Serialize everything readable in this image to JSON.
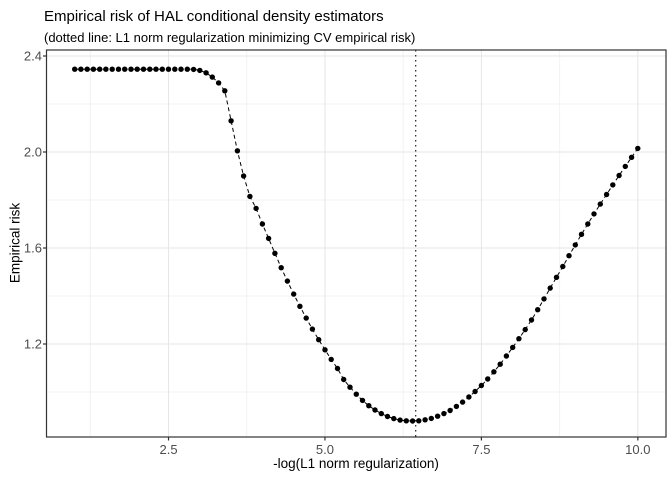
{
  "chart_data": {
    "type": "scatter",
    "title": "Empirical risk of HAL conditional density estimators",
    "subtitle": "(dotted line: L1 norm regularization minimizing CV empirical risk)",
    "xlabel": "-log(L1 norm regularization)",
    "ylabel": "Empirical risk",
    "xlim": [
      0.55,
      10.45
    ],
    "ylim": [
      0.8125,
      2.425
    ],
    "x_major_ticks": [
      2.5,
      5.0,
      7.5,
      10.0
    ],
    "x_tick_labels": [
      "2.5",
      "5.0",
      "7.5",
      "10.0"
    ],
    "x_minor_ticks": [
      1.25,
      3.75,
      6.25,
      8.75
    ],
    "y_major_ticks": [
      1.2,
      1.6,
      2.0,
      2.4
    ],
    "y_tick_labels": [
      "1.2",
      "1.6",
      "2.0",
      "2.4"
    ],
    "y_minor_ticks": [
      1.0,
      1.4,
      1.8,
      2.2
    ],
    "grid": true,
    "legend": "none",
    "vline": {
      "x": 6.45,
      "style": "dotted",
      "meaning": "L1 norm regularization minimizing CV empirical risk"
    },
    "series": [
      {
        "name": "empirical-risk",
        "marker": "filled-circle",
        "line": "dashed",
        "color": "#000000",
        "x": [
          1.0,
          1.1,
          1.2,
          1.3,
          1.4,
          1.5,
          1.6,
          1.7,
          1.8,
          1.9,
          2.0,
          2.1,
          2.2,
          2.3,
          2.4,
          2.5,
          2.6,
          2.7,
          2.8,
          2.9,
          3.0,
          3.1,
          3.2,
          3.3,
          3.4,
          3.5,
          3.6,
          3.7,
          3.8,
          3.9,
          4.0,
          4.1,
          4.2,
          4.3,
          4.4,
          4.5,
          4.6,
          4.7,
          4.8,
          4.9,
          5.0,
          5.1,
          5.2,
          5.3,
          5.4,
          5.5,
          5.6,
          5.7,
          5.8,
          5.9,
          6.0,
          6.1,
          6.2,
          6.3,
          6.4,
          6.5,
          6.6,
          6.7,
          6.8,
          6.9,
          7.0,
          7.1,
          7.2,
          7.3,
          7.4,
          7.5,
          7.6,
          7.7,
          7.8,
          7.9,
          8.0,
          8.1,
          8.2,
          8.3,
          8.4,
          8.5,
          8.6,
          8.7,
          8.8,
          8.9,
          9.0,
          9.1,
          9.2,
          9.3,
          9.4,
          9.5,
          9.6,
          9.7,
          9.8,
          9.9,
          10.0
        ],
        "y": [
          2.345,
          2.345,
          2.345,
          2.345,
          2.345,
          2.345,
          2.345,
          2.345,
          2.345,
          2.345,
          2.345,
          2.345,
          2.345,
          2.345,
          2.345,
          2.345,
          2.345,
          2.345,
          2.345,
          2.344,
          2.34,
          2.33,
          2.312,
          2.288,
          2.255,
          2.13,
          2.005,
          1.9,
          1.815,
          1.765,
          1.7,
          1.64,
          1.578,
          1.518,
          1.462,
          1.408,
          1.357,
          1.308,
          1.262,
          1.218,
          1.176,
          1.136,
          1.098,
          1.052,
          1.02,
          0.991,
          0.965,
          0.943,
          0.925,
          0.91,
          0.898,
          0.889,
          0.883,
          0.88,
          0.879,
          0.88,
          0.884,
          0.89,
          0.899,
          0.91,
          0.923,
          0.94,
          0.958,
          0.979,
          1.002,
          1.027,
          1.054,
          1.084,
          1.116,
          1.15,
          1.186,
          1.222,
          1.26,
          1.3,
          1.343,
          1.388,
          1.433,
          1.478,
          1.523,
          1.568,
          1.613,
          1.657,
          1.7,
          1.742,
          1.783,
          1.823,
          1.863,
          1.902,
          1.94,
          1.978,
          2.015
        ]
      }
    ],
    "colors": {
      "point": "#000000",
      "dashed_line": "#000000",
      "vline": "#1a1a1a",
      "panel_border": "#333333",
      "grid_major": "#e5e5e5",
      "grid_minor": "#f2f2f2",
      "tick_mark": "#333333",
      "tick_text": "#4d4d4d",
      "panel_background": "#ffffff"
    }
  }
}
